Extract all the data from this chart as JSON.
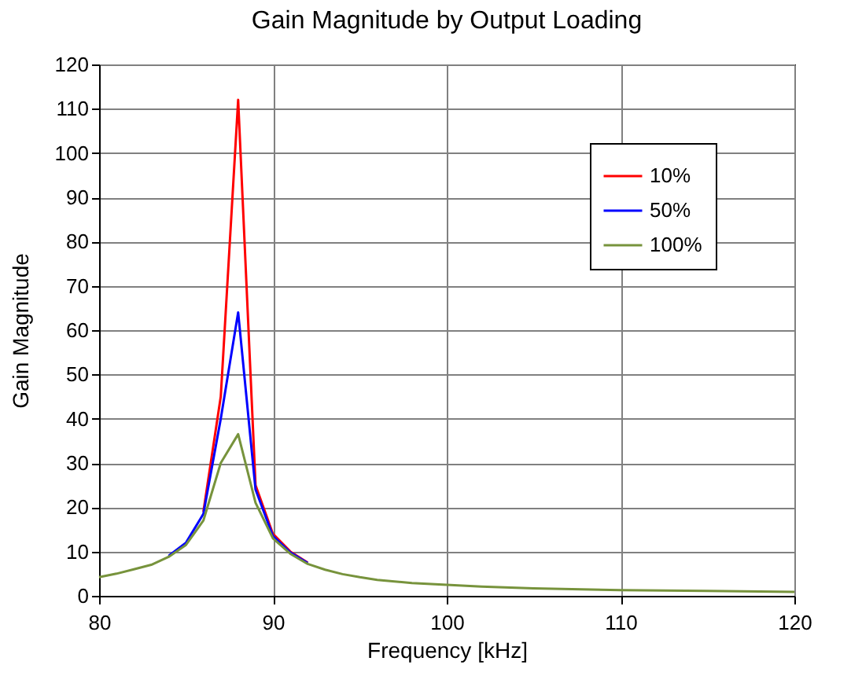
{
  "chart_data": {
    "type": "line",
    "title": "Gain Magnitude by Output Loading",
    "xlabel": "Frequency [kHz]",
    "ylabel": "Gain Magnitude",
    "x": [
      80,
      81,
      82,
      83,
      84,
      85,
      86,
      87,
      88,
      89,
      90,
      91,
      92,
      93,
      94,
      95,
      96,
      98,
      100,
      102,
      105,
      110,
      115,
      120
    ],
    "series": [
      {
        "name": "10%",
        "color": "#ff0000",
        "values": [
          null,
          null,
          null,
          null,
          null,
          null,
          19,
          45,
          112,
          25,
          14,
          10,
          7.5,
          null,
          null,
          null,
          null,
          null,
          null,
          null,
          null,
          null,
          null,
          null
        ]
      },
      {
        "name": "50%",
        "color": "#0000ff",
        "values": [
          null,
          null,
          null,
          null,
          9,
          12,
          18.5,
          40,
          64,
          24,
          13.5,
          9.8,
          7.4,
          null,
          null,
          null,
          null,
          null,
          null,
          null,
          null,
          null,
          null,
          null
        ]
      },
      {
        "name": "100%",
        "color": "#77933c",
        "values": [
          4.2,
          5,
          6,
          7,
          8.8,
          11.5,
          17,
          30,
          36.5,
          21,
          13,
          9.5,
          7.2,
          5.9,
          4.9,
          4.2,
          3.6,
          2.9,
          2.5,
          2.1,
          1.7,
          1.3,
          1.1,
          0.9
        ]
      }
    ],
    "xlim": [
      80,
      120
    ],
    "xticks": [
      80,
      90,
      100,
      110,
      120
    ],
    "ylim": [
      0,
      120
    ],
    "yticks": [
      0,
      10,
      20,
      30,
      40,
      50,
      60,
      70,
      80,
      90,
      100,
      110,
      120
    ],
    "grid": true,
    "legend": "top right",
    "marker": "none",
    "line_style": "solid"
  }
}
